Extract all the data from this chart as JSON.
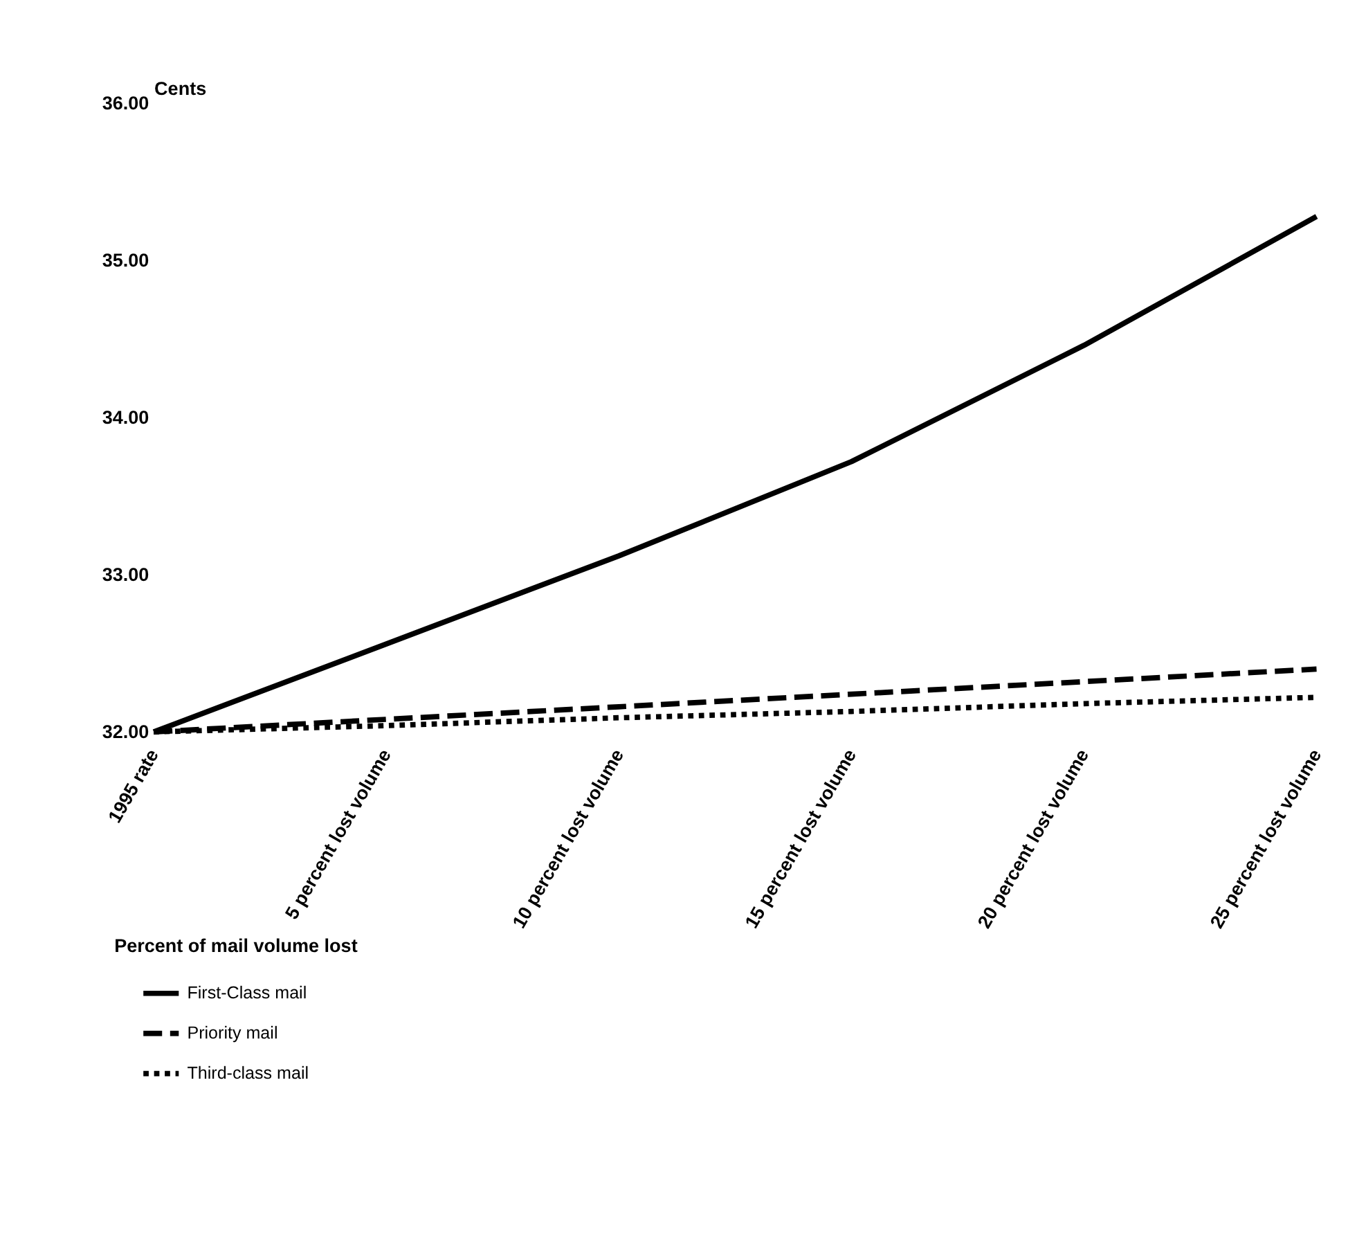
{
  "chart_data": {
    "type": "line",
    "categories": [
      "1995 rate",
      "5 percent lost volume",
      "10 percent lost volume",
      "15 percent lost volume",
      "20 percent lost volume",
      "25 percent lost volume"
    ],
    "series": [
      {
        "name": "First-Class mail",
        "color": "#000000",
        "line_style": "solid",
        "values": [
          32.0,
          32.56,
          33.12,
          33.72,
          34.46,
          35.28
        ]
      },
      {
        "name": "Priority mail",
        "color": "#000000",
        "line_style": "dashed",
        "values": [
          32.0,
          32.08,
          32.16,
          32.24,
          32.32,
          32.4
        ]
      },
      {
        "name": "Third-class mail",
        "color": "#000000",
        "line_style": "dotted",
        "values": [
          32.0,
          32.04,
          32.09,
          32.13,
          32.18,
          32.22
        ]
      }
    ],
    "ylabel": "Cents",
    "xlabel": "Percent of mail volume lost",
    "ylim": [
      32,
      36
    ],
    "yticks": [
      {
        "value": 32,
        "label": "32.00"
      },
      {
        "value": 33,
        "label": "33.00"
      },
      {
        "value": 34,
        "label": "34.00"
      },
      {
        "value": 35,
        "label": "35.00"
      },
      {
        "value": 36,
        "label": "36.00"
      }
    ],
    "grid": false,
    "legend": "bottom",
    "marker": "none"
  }
}
